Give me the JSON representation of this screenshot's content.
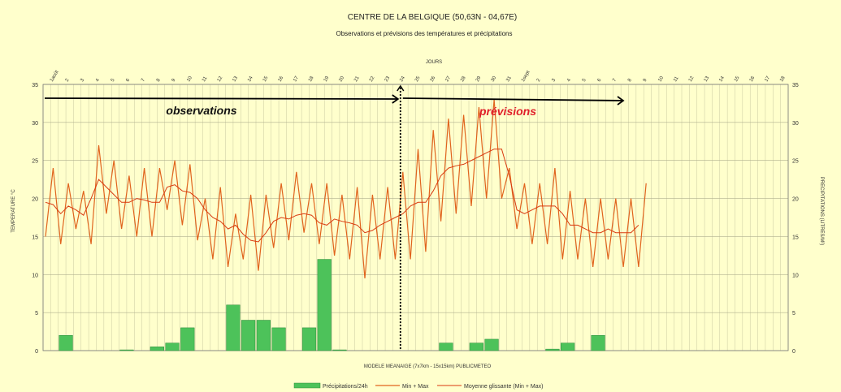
{
  "chart_data": {
    "type": "bar+line",
    "title": "CENTRE DE LA BELGIQUE (50,63N - 04,67E)",
    "subtitle": "Observations et prévisions des températures et précipitations",
    "top_axis_label": "JOURS",
    "xlabel": "MODELE MEANAIGE (7x7km - 15x15km) PUBLICMETEO",
    "ylabel_left": "TEMPERATURE °C",
    "ylabel_right": "PRECIPITATIONS (LITRES/M²)",
    "ylim": [
      0,
      35
    ],
    "yticks": [
      0,
      5,
      10,
      15,
      20,
      25,
      30,
      35
    ],
    "grid": true,
    "legend_position": "bottom",
    "day_labels": [
      "1août",
      "2",
      "3",
      "4",
      "5",
      "6",
      "7",
      "8",
      "9",
      "10",
      "11",
      "12",
      "13",
      "14",
      "15",
      "16",
      "17",
      "18",
      "19",
      "20",
      "21",
      "22",
      "23",
      "24",
      "25",
      "26",
      "27",
      "28",
      "29",
      "30",
      "31",
      "1sept",
      "2",
      "3",
      "4",
      "5",
      "6",
      "7",
      "8",
      "9",
      "10",
      "11",
      "12",
      "13",
      "14",
      "15",
      "16",
      "17",
      "18"
    ],
    "today_index": 23,
    "annotations": {
      "observations": "observations",
      "previsions": "prévisions"
    },
    "colors": {
      "bars": "#4dc25a",
      "bars_edge": "#2e8b3a",
      "minmax": "#e0641e",
      "moving_avg": "#d93a10",
      "today_line": "#000000",
      "previsions_text": "#e0202a",
      "background": "#ffffcc"
    },
    "series": [
      {
        "name": "Précipitations/24h",
        "kind": "bar",
        "values": [
          0,
          2,
          0,
          0,
          0,
          0.1,
          0,
          0.5,
          1,
          3,
          0,
          0,
          6,
          4,
          4,
          3,
          0,
          3,
          12,
          0.1,
          0,
          0,
          0,
          0,
          0,
          0,
          1,
          0,
          1,
          1.5,
          0,
          0,
          0,
          0.2,
          1,
          0,
          2,
          0,
          0,
          0,
          0,
          0,
          0,
          0,
          0,
          0,
          0,
          0,
          0
        ]
      },
      {
        "name": "Min + Max",
        "kind": "line",
        "values": [
          15,
          24,
          14,
          22,
          16,
          21,
          14,
          27,
          18,
          25,
          16,
          23,
          15,
          24,
          15,
          24,
          18.5,
          25,
          16.5,
          24.5,
          14.5,
          20,
          12,
          21.5,
          11,
          18,
          12,
          20.5,
          10.5,
          20.5,
          13.5,
          22,
          14.5,
          23.5,
          15.5,
          22,
          14,
          22,
          12.5,
          20.5,
          12,
          21.5,
          9.5,
          20.5,
          12,
          21.5,
          12,
          23.5,
          12,
          26.5,
          13,
          29,
          17,
          30.5,
          18,
          31,
          19,
          32,
          20,
          33,
          20,
          24,
          16,
          22,
          14,
          22,
          14,
          24,
          12,
          21,
          12,
          20,
          11,
          20,
          12,
          20,
          11,
          20,
          11,
          22
        ]
      },
      {
        "name": "Moyenne glissante (Min + Max)",
        "kind": "line",
        "values": [
          19.5,
          19.2,
          18,
          19,
          18.5,
          17.8,
          20,
          22.5,
          21.5,
          20.5,
          19.5,
          19.5,
          20,
          19.8,
          19.5,
          19.5,
          21.5,
          21.8,
          21,
          20.8,
          20,
          18.5,
          17.5,
          17,
          16,
          16.5,
          15.3,
          14.5,
          14.3,
          15.5,
          17,
          17.5,
          17.3,
          17.8,
          18,
          17.8,
          16.8,
          16.5,
          17.3,
          17,
          16.8,
          16.5,
          15.5,
          15.8,
          16.5,
          17,
          17.5,
          18,
          19,
          19.5,
          19.5,
          21,
          23,
          24,
          24.3,
          24.5,
          25,
          25.5,
          26,
          26.5,
          26.5,
          23,
          18.5,
          18,
          18.5,
          19,
          19,
          19,
          18,
          16.5,
          16.5,
          16,
          15.5,
          15.5,
          16,
          15.5,
          15.5,
          15.5,
          16.5
        ]
      }
    ],
    "legend": [
      "Précipitations/24h",
      "Min + Max",
      "Moyenne glissante (Min + Max)"
    ]
  }
}
